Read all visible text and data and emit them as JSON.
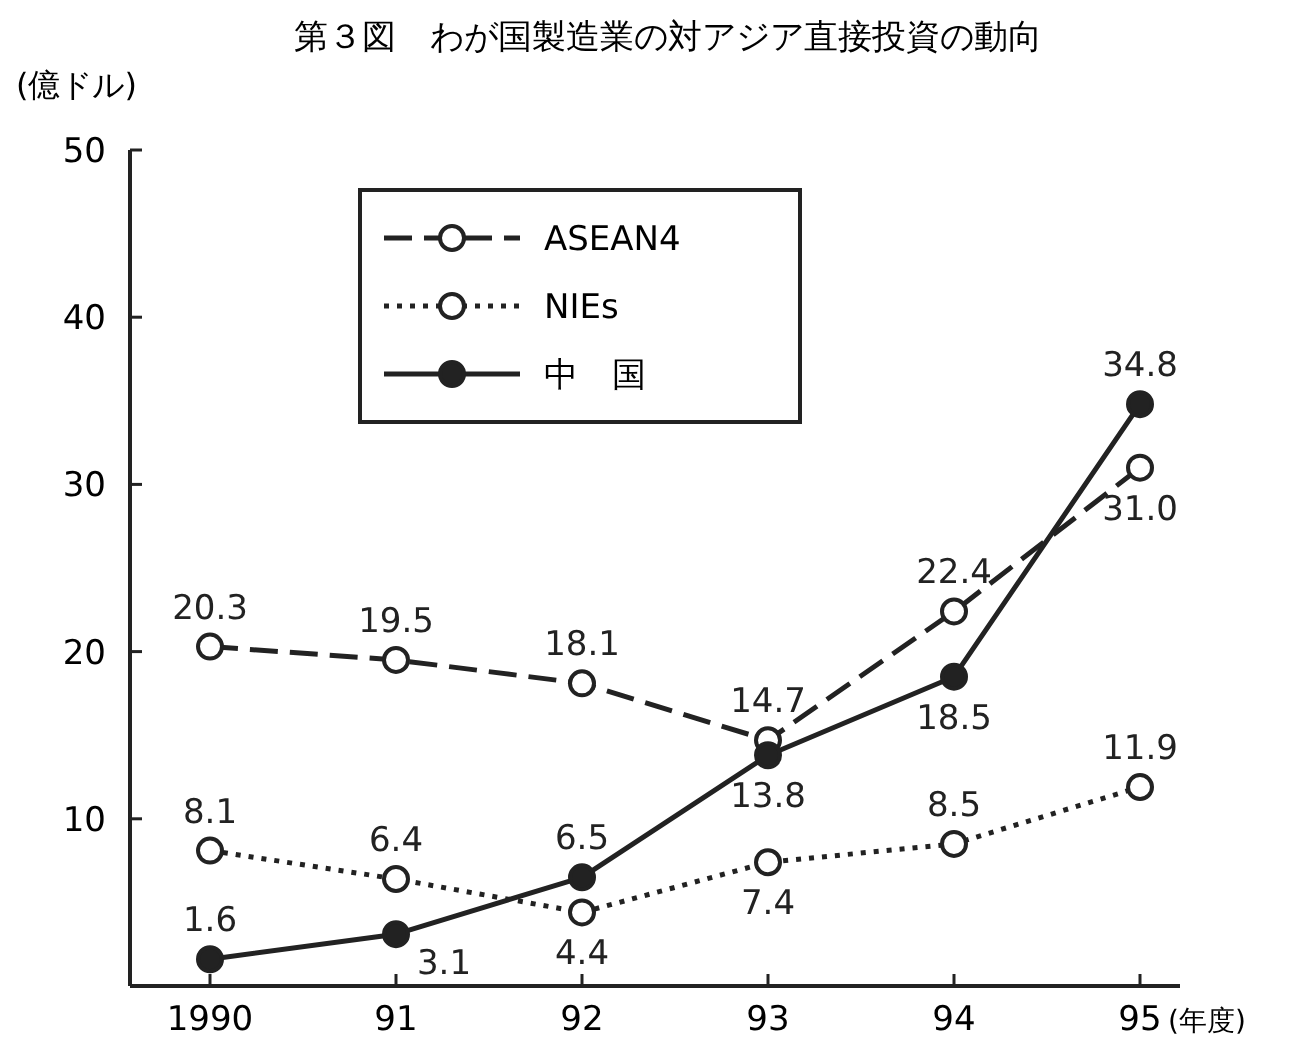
{
  "chart_data": {
    "type": "line",
    "title": "第３図　わが国製造業の対アジア直接投資の動向",
    "ylabel": "(億ドル)",
    "xlabel": "(年度)",
    "categories": [
      "1990",
      "91",
      "92",
      "93",
      "94",
      "95"
    ],
    "ylim": [
      0,
      50
    ],
    "yticks": [
      10,
      20,
      30,
      40,
      50
    ],
    "grid": false,
    "legend": "top",
    "marker": "circle",
    "data_labels": true,
    "series": [
      {
        "name": "ASEAN4",
        "color": "#222222",
        "line_style": "dashed",
        "values": [
          20.3,
          19.5,
          18.1,
          14.7,
          22.4,
          31.0
        ],
        "value_labels": [
          "20.3",
          "19.5",
          "18.1",
          "14.7",
          "22.4",
          "31.0"
        ]
      },
      {
        "name": "NIEs",
        "color": "#222222",
        "line_style": "dotted",
        "values": [
          8.1,
          6.4,
          4.4,
          7.4,
          8.5,
          11.9
        ],
        "value_labels": [
          "8.1",
          "6.4",
          "4.4",
          "7.4",
          "8.5",
          "11.9"
        ]
      },
      {
        "name": "中　国",
        "color": "#222222",
        "line_style": "solid",
        "values": [
          1.6,
          3.1,
          6.5,
          13.8,
          18.5,
          34.8
        ],
        "value_labels": [
          "1.6",
          "3.1",
          "6.5",
          "13.8",
          "18.5",
          "34.8"
        ]
      }
    ]
  }
}
